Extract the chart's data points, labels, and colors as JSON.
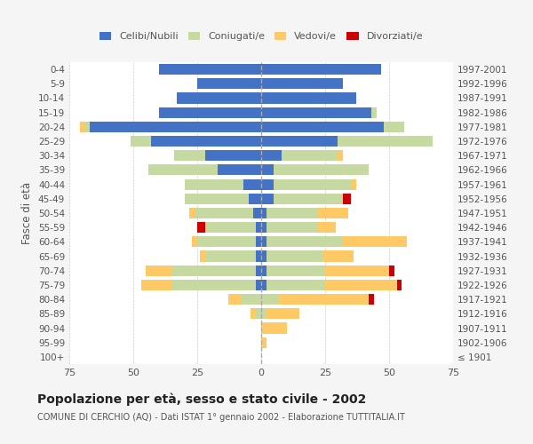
{
  "age_groups": [
    "100+",
    "95-99",
    "90-94",
    "85-89",
    "80-84",
    "75-79",
    "70-74",
    "65-69",
    "60-64",
    "55-59",
    "50-54",
    "45-49",
    "40-44",
    "35-39",
    "30-34",
    "25-29",
    "20-24",
    "15-19",
    "10-14",
    "5-9",
    "0-4"
  ],
  "birth_years": [
    "≤ 1901",
    "1902-1906",
    "1907-1911",
    "1912-1916",
    "1917-1921",
    "1922-1926",
    "1927-1931",
    "1932-1936",
    "1937-1941",
    "1942-1946",
    "1947-1951",
    "1952-1956",
    "1957-1961",
    "1962-1966",
    "1967-1971",
    "1972-1976",
    "1977-1981",
    "1982-1986",
    "1987-1991",
    "1992-1996",
    "1997-2001"
  ],
  "male": {
    "celibi": [
      0,
      0,
      0,
      0,
      0,
      2,
      2,
      2,
      2,
      2,
      3,
      5,
      7,
      17,
      22,
      43,
      67,
      40,
      33,
      25,
      40
    ],
    "coniugati": [
      0,
      0,
      0,
      2,
      8,
      33,
      33,
      20,
      23,
      20,
      23,
      25,
      23,
      27,
      12,
      8,
      2,
      0,
      0,
      0,
      0
    ],
    "vedovi": [
      0,
      0,
      0,
      2,
      5,
      12,
      10,
      2,
      2,
      0,
      2,
      0,
      0,
      0,
      0,
      0,
      2,
      0,
      0,
      0,
      0
    ],
    "divorziati": [
      0,
      0,
      0,
      0,
      0,
      0,
      0,
      0,
      0,
      3,
      0,
      0,
      0,
      0,
      0,
      0,
      0,
      0,
      0,
      0,
      0
    ]
  },
  "female": {
    "nubili": [
      0,
      0,
      0,
      0,
      0,
      2,
      2,
      2,
      2,
      2,
      2,
      5,
      5,
      5,
      8,
      30,
      48,
      43,
      37,
      32,
      47
    ],
    "coniugate": [
      0,
      0,
      0,
      2,
      7,
      23,
      23,
      22,
      30,
      20,
      20,
      27,
      30,
      37,
      22,
      37,
      8,
      2,
      0,
      0,
      0
    ],
    "vedove": [
      0,
      2,
      10,
      13,
      35,
      28,
      25,
      12,
      25,
      7,
      12,
      0,
      2,
      0,
      2,
      0,
      0,
      0,
      0,
      0,
      0
    ],
    "divorziate": [
      0,
      0,
      0,
      0,
      2,
      2,
      2,
      0,
      0,
      0,
      0,
      3,
      0,
      0,
      0,
      0,
      0,
      0,
      0,
      0,
      0
    ]
  },
  "colors": {
    "celibi": "#4472c4",
    "coniugati": "#c5d9a0",
    "vedovi": "#ffc966",
    "divorziati": "#cc0000"
  },
  "xlim": 75,
  "title": "Popolazione per età, sesso e stato civile - 2002",
  "subtitle": "COMUNE DI CERCHIO (AQ) - Dati ISTAT 1° gennaio 2002 - Elaborazione TUTTITALIA.IT",
  "ylabel_left": "Fasce di età",
  "bg_color": "#f5f5f5",
  "plot_bg": "#ffffff",
  "legend_labels": [
    "Celibi/Nubili",
    "Coniugati/e",
    "Vedovi/e",
    "Divorziati/e"
  ]
}
